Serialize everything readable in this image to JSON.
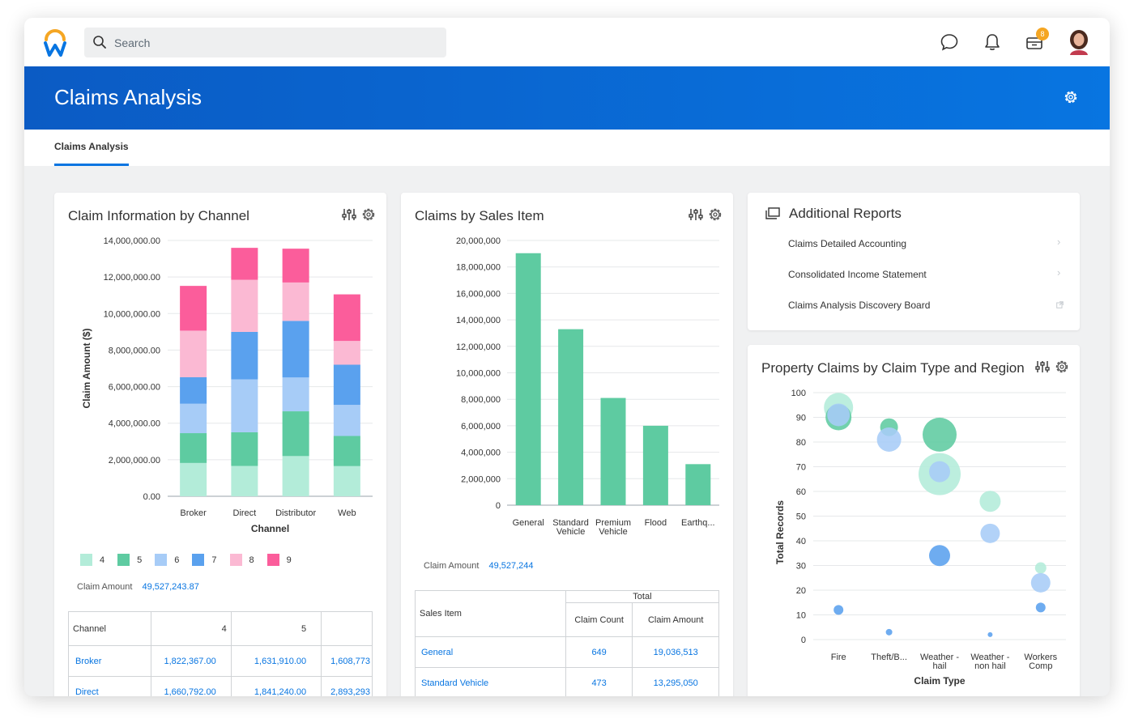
{
  "search": {
    "placeholder": "Search"
  },
  "notifications": {
    "inbox_badge": "8"
  },
  "page": {
    "title": "Claims Analysis",
    "tab": "Claims Analysis"
  },
  "channel_card": {
    "title": "Claim Information by Channel",
    "summary_label": "Claim Amount",
    "summary_value": "49,527,243.87",
    "table": {
      "headers": [
        "Channel",
        "4",
        "5",
        ""
      ],
      "rows": [
        {
          "channel": "Broker",
          "c4": "1,822,367.00",
          "c5": "1,631,910.00",
          "c6": "1,608,773"
        },
        {
          "channel": "Direct",
          "c4": "1,660,792.00",
          "c5": "1,841,240.00",
          "c6": "2,893,293"
        }
      ]
    }
  },
  "sales_card": {
    "title": "Claims by Sales Item",
    "summary_label": "Claim Amount",
    "summary_value": "49,527,244",
    "table": {
      "group_header": "Total",
      "headers": [
        "Sales Item",
        "Claim Count",
        "Claim Amount"
      ],
      "rows": [
        {
          "item": "General",
          "count": "649",
          "amount": "19,036,513"
        },
        {
          "item": "Standard Vehicle",
          "count": "473",
          "amount": "13,295,050"
        }
      ]
    }
  },
  "reports_card": {
    "title": "Additional Reports",
    "items": [
      {
        "label": "Claims Detailed Accounting",
        "icon": "chevron-right-icon"
      },
      {
        "label": "Consolidated Income Statement",
        "icon": "chevron-right-icon"
      },
      {
        "label": "Claims Analysis Discovery Board",
        "icon": "external-link-icon"
      }
    ]
  },
  "property_card": {
    "title": "Property Claims by Claim Type and Region"
  },
  "chart_data": [
    {
      "type": "bar",
      "stacked": true,
      "ylabel": "Claim Amount ($)",
      "xlabel": "Channel",
      "ylim": [
        0,
        14000000
      ],
      "yticks": [
        "0.00",
        "2,000,000.00",
        "4,000,000.00",
        "6,000,000.00",
        "8,000,000.00",
        "10,000,000.00",
        "12,000,000.00",
        "14,000,000.00"
      ],
      "categories": [
        "Broker",
        "Direct",
        "Distributor",
        "Web"
      ],
      "series": [
        {
          "name": "4",
          "color": "#b3ecd9",
          "values": [
            1822367,
            1660792,
            2200000,
            1650000
          ]
        },
        {
          "name": "5",
          "color": "#5ecba1",
          "values": [
            1631910,
            1841240,
            2450000,
            1650000
          ]
        },
        {
          "name": "6",
          "color": "#a7ccf7",
          "values": [
            1608773,
            2893293,
            1850000,
            1700000
          ]
        },
        {
          "name": "7",
          "color": "#5aa1ee",
          "values": [
            1450000,
            2600000,
            3100000,
            2200000
          ]
        },
        {
          "name": "8",
          "color": "#fbb9d3",
          "values": [
            2550000,
            2850000,
            2100000,
            1300000
          ]
        },
        {
          "name": "9",
          "color": "#fb5d9b",
          "values": [
            2450000,
            1750000,
            1850000,
            2550000
          ]
        }
      ],
      "legend": "bottom-left",
      "grid": true
    },
    {
      "type": "bar",
      "ylim": [
        0,
        20000000
      ],
      "yticks": [
        "0",
        "2,000,000",
        "4,000,000",
        "6,000,000",
        "8,000,000",
        "10,000,000",
        "12,000,000",
        "14,000,000",
        "16,000,000",
        "18,000,000",
        "20,000,000"
      ],
      "categories": [
        "General",
        "Standard Vehicle",
        "Premium Vehicle",
        "Flood",
        "Earthq..."
      ],
      "category_lines": [
        [
          "General"
        ],
        [
          "Standard",
          "Vehicle"
        ],
        [
          "Premium",
          "Vehicle"
        ],
        [
          "Flood"
        ],
        [
          "Earthq..."
        ]
      ],
      "values": [
        19036513,
        13295050,
        8100000,
        6000000,
        3100000
      ],
      "color": "#5ecba1",
      "grid": true
    },
    {
      "type": "scatter",
      "xlabel": "Claim Type",
      "ylabel": "Total Records",
      "ylim": [
        0,
        100
      ],
      "yticks": [
        "0",
        "10",
        "20",
        "30",
        "40",
        "50",
        "60",
        "70",
        "80",
        "90",
        "100"
      ],
      "categories": [
        "Fire",
        "Theft/B...",
        "Weather - hail",
        "Weather - non hail",
        "Workers Comp"
      ],
      "category_lines": [
        [
          "Fire"
        ],
        [
          "Theft/B..."
        ],
        [
          "Weather -",
          "hail"
        ],
        [
          "Weather -",
          "non hail"
        ],
        [
          "Workers",
          "Comp"
        ]
      ],
      "points": [
        {
          "x": "Fire",
          "y": 94,
          "size": 18,
          "color": "#b3ecd9"
        },
        {
          "x": "Fire",
          "y": 90,
          "size": 16,
          "color": "#5ecba1"
        },
        {
          "x": "Fire",
          "y": 91,
          "size": 14,
          "color": "#a7ccf7"
        },
        {
          "x": "Fire",
          "y": 12,
          "size": 6,
          "color": "#5aa1ee"
        },
        {
          "x": "Theft/B...",
          "y": 86,
          "size": 11,
          "color": "#5ecba1"
        },
        {
          "x": "Theft/B...",
          "y": 81,
          "size": 15,
          "color": "#a7ccf7"
        },
        {
          "x": "Theft/B...",
          "y": 3,
          "size": 4,
          "color": "#5aa1ee"
        },
        {
          "x": "Weather - hail",
          "y": 83,
          "size": 21,
          "color": "#5ecba1"
        },
        {
          "x": "Weather - hail",
          "y": 67,
          "size": 26,
          "color": "#b3ecd9"
        },
        {
          "x": "Weather - hail",
          "y": 68,
          "size": 13,
          "color": "#a7ccf7"
        },
        {
          "x": "Weather - hail",
          "y": 34,
          "size": 13,
          "color": "#5aa1ee"
        },
        {
          "x": "Weather - non hail",
          "y": 56,
          "size": 13,
          "color": "#b3ecd9"
        },
        {
          "x": "Weather - non hail",
          "y": 43,
          "size": 12,
          "color": "#a7ccf7"
        },
        {
          "x": "Weather - non hail",
          "y": 2,
          "size": 3,
          "color": "#5aa1ee"
        },
        {
          "x": "Workers Comp",
          "y": 29,
          "size": 7,
          "color": "#b3ecd9"
        },
        {
          "x": "Workers Comp",
          "y": 23,
          "size": 12,
          "color": "#a7ccf7"
        },
        {
          "x": "Workers Comp",
          "y": 13,
          "size": 6,
          "color": "#5aa1ee"
        }
      ],
      "grid": true
    }
  ]
}
